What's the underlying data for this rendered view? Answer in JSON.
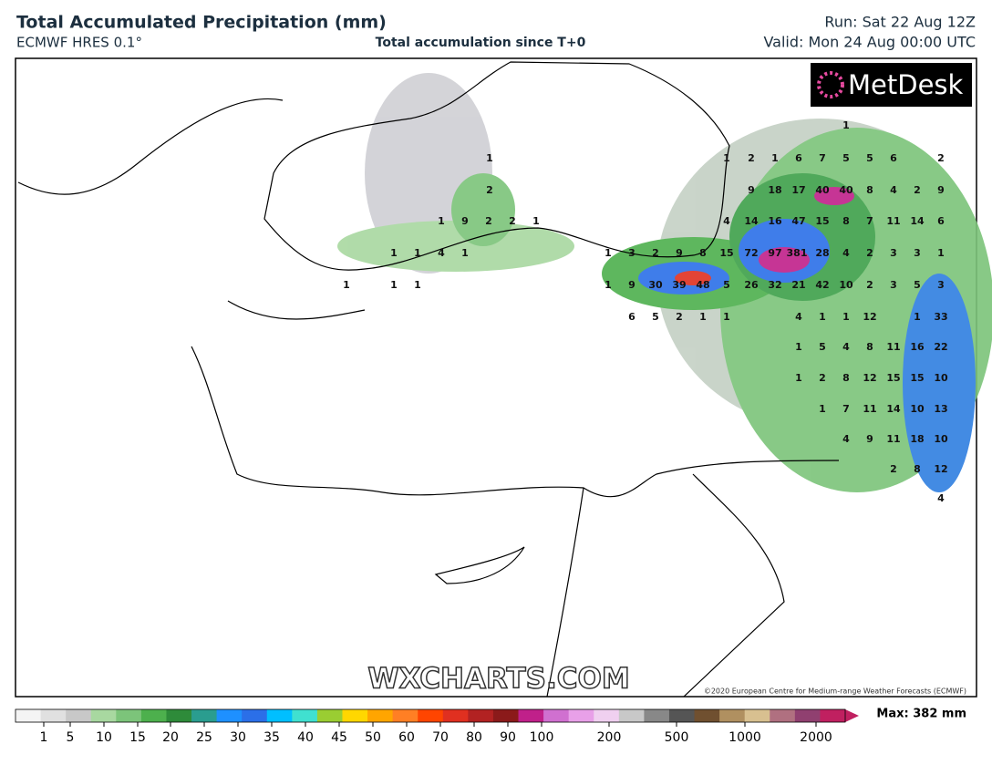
{
  "header": {
    "title": "Total Accumulated Precipitation (mm)",
    "model": "ECMWF HRES 0.1°",
    "subtitle": "Total accumulation since T+0",
    "run": "Run: Sat 22 Aug 12Z",
    "valid": "Valid: Mon 24 Aug 00:00 UTC"
  },
  "logo": "MetDesk",
  "watermark": "WXCHARTS.COM",
  "copyright": "©2020 European Centre for Medium-range Weather Forecasts (ECMWF)",
  "map_labels": [
    1,
    1,
    2,
    1,
    6,
    7,
    5,
    5,
    6,
    2,
    1,
    9,
    18,
    17,
    40,
    40,
    8,
    4,
    2,
    9,
    2,
    1,
    9,
    2,
    2,
    1,
    4,
    14,
    16,
    47,
    15,
    8,
    7,
    11,
    14,
    6,
    1,
    1,
    4,
    1,
    1,
    3,
    2,
    9,
    8,
    15,
    72,
    97,
    381,
    28,
    4,
    2,
    3,
    3,
    1,
    1,
    1,
    1,
    1,
    9,
    30,
    39,
    48,
    5,
    26,
    32,
    21,
    42,
    10,
    2,
    3,
    5,
    3,
    6,
    5,
    2,
    1,
    1,
    4,
    1,
    1,
    12,
    1,
    33,
    1,
    5,
    4,
    8,
    11,
    16,
    22,
    1,
    2,
    8,
    12,
    15,
    15,
    10,
    1,
    7,
    11,
    14,
    10,
    13,
    4,
    9,
    11,
    18,
    10,
    2,
    8,
    12,
    4
  ],
  "colorbar": {
    "ticks": [
      1,
      5,
      10,
      15,
      20,
      25,
      30,
      35,
      40,
      45,
      50,
      60,
      70,
      80,
      90,
      100,
      200,
      500,
      1000,
      2000
    ],
    "max_label": "Max: 382 mm"
  }
}
